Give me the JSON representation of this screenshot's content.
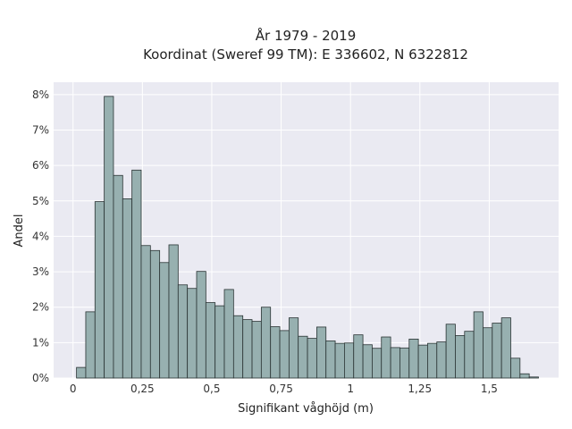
{
  "chart_data": {
    "type": "bar",
    "title": "År 1979 - 2019",
    "subtitle": "Koordinat (Sweref 99 TM): E 336602, N 6322812",
    "xlabel": "Signifikant våghöjd (m)",
    "ylabel": "Andel",
    "xlim": [
      -0.07,
      1.75
    ],
    "ylim": [
      0,
      8.35
    ],
    "x_ticks": [
      0,
      0.25,
      0.5,
      0.75,
      1,
      1.25,
      1.5
    ],
    "x_tick_labels": [
      "0",
      "0,25",
      "0,5",
      "0,75",
      "1",
      "1,25",
      "1,5"
    ],
    "y_ticks": [
      0,
      1,
      2,
      3,
      4,
      5,
      6,
      7,
      8
    ],
    "y_tick_labels": [
      "0%",
      "1%",
      "2%",
      "3%",
      "4%",
      "5%",
      "6%",
      "7%",
      "8%"
    ],
    "bin_start": 0.0125,
    "bin_width": 0.0333,
    "values": [
      0.3,
      1.87,
      4.98,
      7.95,
      5.72,
      5.06,
      5.87,
      3.74,
      3.6,
      3.26,
      3.76,
      2.63,
      2.53,
      3.01,
      2.13,
      2.04,
      2.5,
      1.76,
      1.65,
      1.6,
      2.0,
      1.45,
      1.34,
      1.7,
      1.18,
      1.12,
      1.44,
      1.05,
      0.98,
      0.99,
      1.22,
      0.94,
      0.84,
      1.16,
      0.86,
      0.85,
      1.1,
      0.93,
      0.98,
      1.02,
      1.52,
      1.2,
      1.32,
      1.87,
      1.42,
      1.55,
      1.7,
      0.56,
      0.12,
      0.03
    ],
    "grid": true,
    "colors": {
      "bar_fill": "#97b0b0",
      "bar_stroke": "#2a3434",
      "plot_bg": "#eaeaf2",
      "grid": "#ffffff"
    }
  }
}
